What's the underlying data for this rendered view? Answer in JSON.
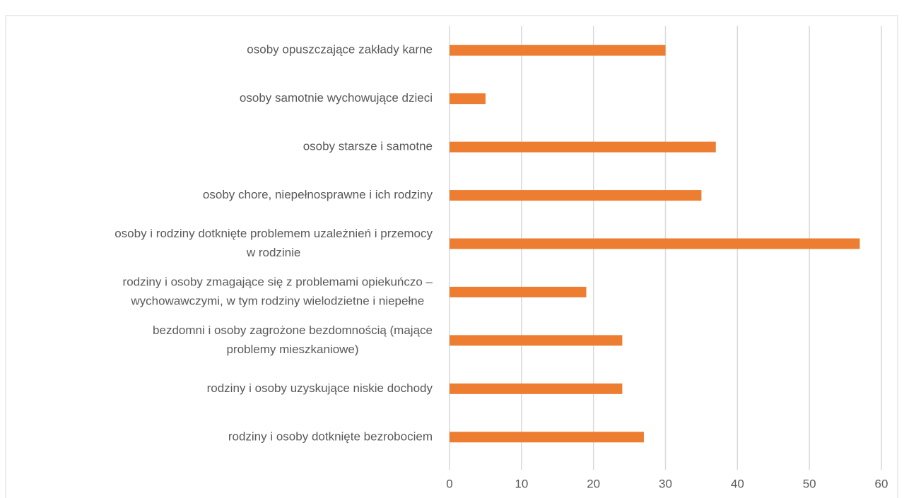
{
  "chart_data": {
    "type": "bar",
    "orientation": "horizontal",
    "categories": [
      [
        "osoby opuszczające zakłady karne"
      ],
      [
        "osoby samotnie wychowujące dzieci"
      ],
      [
        "osoby starsze i samotne"
      ],
      [
        "osoby chore, niepełnosprawne i ich rodziny"
      ],
      [
        "osoby i rodziny dotknięte problemem uzależnień i przemocy",
        "w rodzinie"
      ],
      [
        "rodziny i osoby zmagające się z problemami opiekuńczo –",
        "wychowawczymi, w tym   rodziny wielodzietne i niepełne"
      ],
      [
        "bezdomni i osoby zagrożone bezdomnością (mające",
        "problemy mieszkaniowe)"
      ],
      [
        "rodziny i osoby uzyskujące niskie dochody"
      ],
      [
        "rodziny i osoby dotknięte bezrobociem"
      ]
    ],
    "values": [
      30,
      5,
      37,
      35,
      57,
      19,
      24,
      24,
      27
    ],
    "color": "#ed7d31",
    "xlim": [
      0,
      60
    ],
    "xticks": [
      0,
      10,
      20,
      30,
      40,
      50,
      60
    ],
    "grid": true
  }
}
